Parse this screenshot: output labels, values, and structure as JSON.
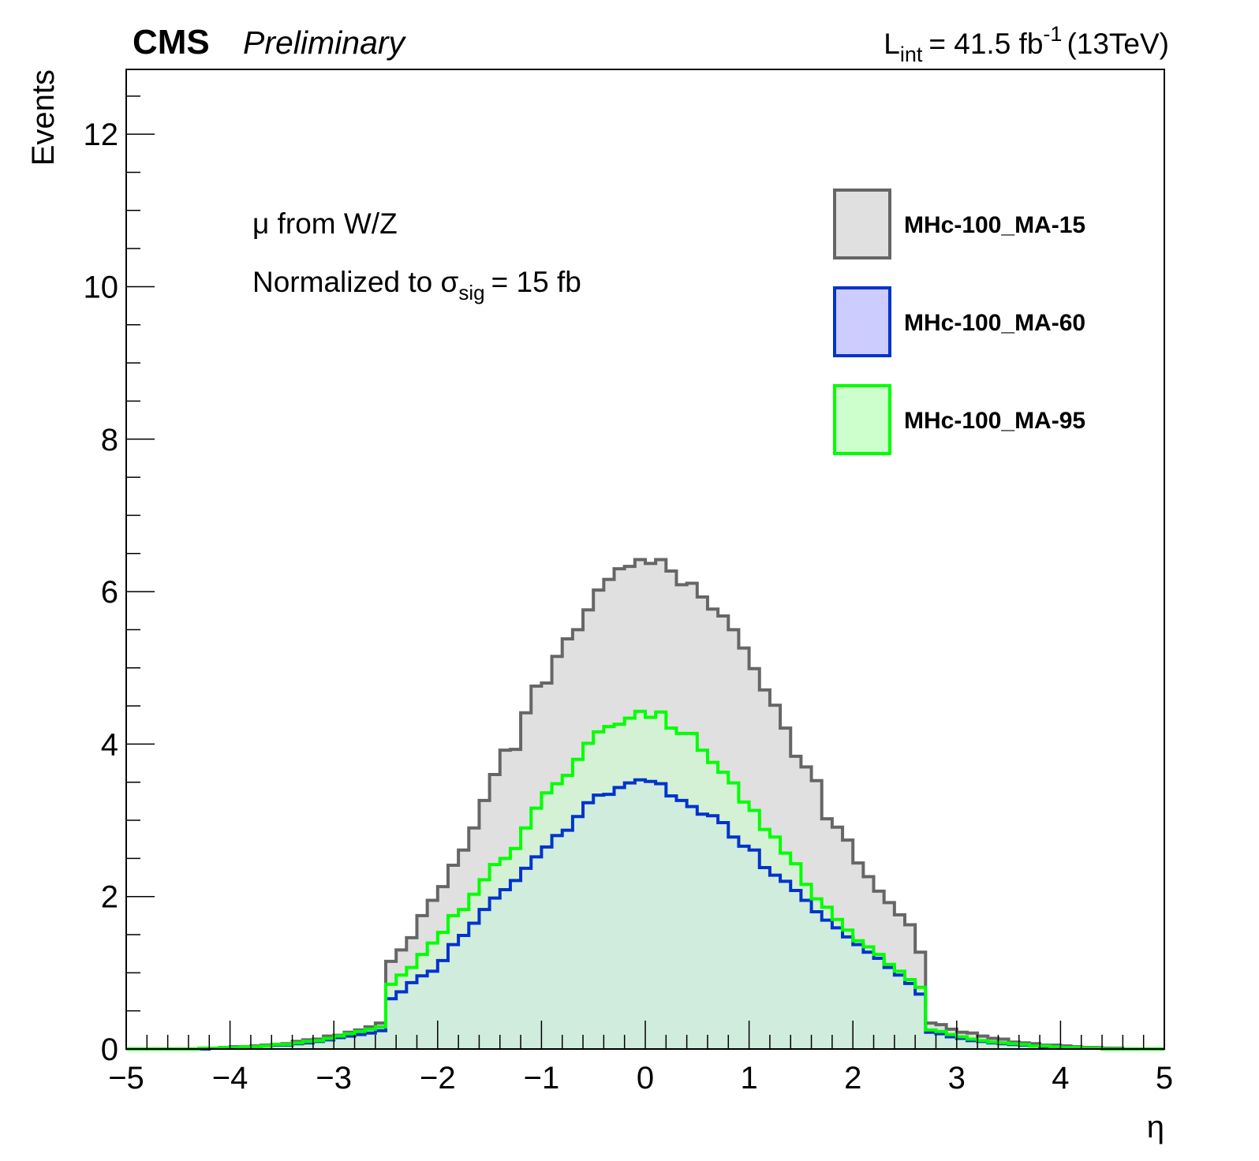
{
  "chart_data": {
    "type": "histogram-step",
    "experiment": "CMS",
    "status": "Preliminary",
    "lumi_prefix": "L",
    "lumi_sub": "int",
    "lumi_value": "= 41.5 fb",
    "lumi_sup": "-1",
    "energy": "(13TeV)",
    "xlabel": "η",
    "ylabel": "Events",
    "annotation_line1": "μ from W/Z",
    "annotation_line2_pre": "Normalized to σ",
    "annotation_line2_sub": "sig",
    "annotation_line2_post": "= 15 fb",
    "xlim": [
      -5,
      5
    ],
    "ylim": [
      0,
      12.85
    ],
    "nbins": 100,
    "x_ticks": [
      {
        "v": -5,
        "label": "−5"
      },
      {
        "v": -4,
        "label": "−4"
      },
      {
        "v": -3,
        "label": "−3"
      },
      {
        "v": -2,
        "label": "−2"
      },
      {
        "v": -1,
        "label": "−1"
      },
      {
        "v": 0,
        "label": "0"
      },
      {
        "v": 1,
        "label": "1"
      },
      {
        "v": 2,
        "label": "2"
      },
      {
        "v": 3,
        "label": "3"
      },
      {
        "v": 4,
        "label": "4"
      },
      {
        "v": 5,
        "label": "5"
      }
    ],
    "y_ticks": [
      {
        "v": 0,
        "label": "0"
      },
      {
        "v": 2,
        "label": "2"
      },
      {
        "v": 4,
        "label": "4"
      },
      {
        "v": 6,
        "label": "6"
      },
      {
        "v": 8,
        "label": "8"
      },
      {
        "v": 10,
        "label": "10"
      },
      {
        "v": 12,
        "label": "12"
      }
    ],
    "legend_position": "top-right",
    "series": [
      {
        "name": "MHc-100_MA-15",
        "line_color": "#666666",
        "fill_color": "#e0e0e0",
        "values": [
          0.0,
          0.0,
          0.0,
          0.0,
          0.0,
          0.0,
          0.0,
          0.01,
          0.01,
          0.02,
          0.03,
          0.03,
          0.04,
          0.05,
          0.06,
          0.07,
          0.1,
          0.12,
          0.13,
          0.17,
          0.18,
          0.22,
          0.25,
          0.29,
          0.34,
          1.15,
          1.3,
          1.46,
          1.75,
          1.95,
          2.13,
          2.41,
          2.61,
          2.9,
          3.26,
          3.6,
          3.92,
          3.93,
          4.41,
          4.76,
          4.8,
          5.15,
          5.38,
          5.5,
          5.76,
          6.02,
          6.16,
          6.3,
          6.33,
          6.42,
          6.37,
          6.42,
          6.27,
          6.09,
          6.11,
          5.93,
          5.77,
          5.68,
          5.5,
          5.26,
          4.99,
          4.71,
          4.51,
          4.21,
          3.84,
          3.7,
          3.52,
          3.02,
          2.91,
          2.74,
          2.44,
          2.26,
          2.07,
          1.92,
          1.76,
          1.63,
          1.27,
          0.34,
          0.32,
          0.26,
          0.22,
          0.21,
          0.17,
          0.14,
          0.13,
          0.09,
          0.08,
          0.07,
          0.05,
          0.05,
          0.04,
          0.03,
          0.02,
          0.02,
          0.01,
          0.01,
          0.0,
          0.0,
          0.0,
          0.0
        ]
      },
      {
        "name": "MHc-100_MA-60",
        "line_color": "#0033cc",
        "fill_color": "#ccccff",
        "values": [
          0.0,
          0.0,
          0.0,
          0.0,
          0.0,
          0.0,
          0.0,
          0.0,
          0.01,
          0.01,
          0.02,
          0.02,
          0.03,
          0.04,
          0.05,
          0.05,
          0.07,
          0.08,
          0.1,
          0.12,
          0.15,
          0.17,
          0.19,
          0.21,
          0.24,
          0.66,
          0.75,
          0.87,
          0.96,
          1.02,
          1.16,
          1.37,
          1.49,
          1.65,
          1.83,
          1.98,
          2.09,
          2.21,
          2.37,
          2.52,
          2.65,
          2.8,
          2.87,
          3.05,
          3.23,
          3.33,
          3.34,
          3.43,
          3.49,
          3.53,
          3.51,
          3.48,
          3.32,
          3.26,
          3.18,
          3.08,
          3.06,
          2.97,
          2.78,
          2.66,
          2.61,
          2.38,
          2.28,
          2.2,
          2.08,
          1.95,
          1.8,
          1.69,
          1.59,
          1.47,
          1.37,
          1.27,
          1.19,
          1.07,
          0.97,
          0.86,
          0.72,
          0.22,
          0.2,
          0.16,
          0.14,
          0.11,
          0.1,
          0.08,
          0.07,
          0.06,
          0.05,
          0.04,
          0.03,
          0.03,
          0.02,
          0.01,
          0.01,
          0.01,
          0.0,
          0.0,
          0.0,
          0.0,
          0.0,
          0.0
        ]
      },
      {
        "name": "MHc-100_MA-95",
        "line_color": "#00ff00",
        "fill_color": "#ccffcc",
        "values": [
          0.0,
          0.0,
          0.0,
          0.0,
          0.0,
          0.0,
          0.0,
          0.01,
          0.01,
          0.02,
          0.02,
          0.03,
          0.03,
          0.04,
          0.06,
          0.06,
          0.08,
          0.1,
          0.11,
          0.14,
          0.17,
          0.2,
          0.23,
          0.26,
          0.29,
          0.85,
          0.97,
          1.07,
          1.24,
          1.39,
          1.53,
          1.75,
          1.83,
          2.03,
          2.22,
          2.42,
          2.5,
          2.63,
          2.9,
          3.16,
          3.36,
          3.48,
          3.59,
          3.8,
          4.01,
          4.16,
          4.23,
          4.26,
          4.34,
          4.43,
          4.35,
          4.42,
          4.21,
          4.14,
          4.14,
          3.92,
          3.76,
          3.63,
          3.49,
          3.24,
          3.13,
          2.88,
          2.78,
          2.57,
          2.43,
          2.16,
          1.97,
          1.86,
          1.7,
          1.56,
          1.42,
          1.34,
          1.24,
          1.11,
          1.02,
          0.91,
          0.81,
          0.25,
          0.23,
          0.19,
          0.16,
          0.13,
          0.11,
          0.09,
          0.08,
          0.07,
          0.06,
          0.04,
          0.04,
          0.03,
          0.02,
          0.02,
          0.01,
          0.01,
          0.0,
          0.0,
          0.0,
          0.0,
          0.0,
          0.0
        ]
      }
    ]
  }
}
